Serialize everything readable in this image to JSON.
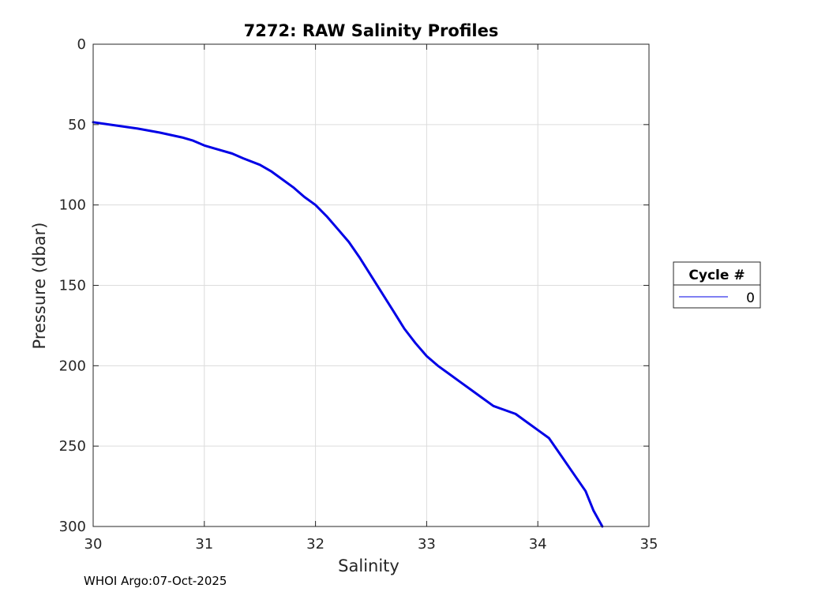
{
  "chart_data": {
    "type": "line",
    "title": "7272: RAW Salinity Profiles",
    "xlabel": "Salinity",
    "ylabel": "Pressure (dbar)",
    "xlim": [
      30,
      35
    ],
    "ylim": [
      0,
      300
    ],
    "y_reversed": true,
    "grid": true,
    "x_ticks": [
      "30",
      "31",
      "32",
      "33",
      "34",
      "35"
    ],
    "y_ticks": [
      "0",
      "50",
      "100",
      "150",
      "200",
      "250",
      "300"
    ],
    "legend": {
      "title": "Cycle #",
      "placement": "outside-right"
    },
    "series": [
      {
        "name": "0",
        "color": "#0000e6",
        "x": [
          30.0,
          30.2,
          30.4,
          30.6,
          30.8,
          30.9,
          31.0,
          31.1,
          31.25,
          31.35,
          31.5,
          31.6,
          31.7,
          31.8,
          31.9,
          32.0,
          32.1,
          32.2,
          32.3,
          32.4,
          32.5,
          32.6,
          32.7,
          32.8,
          32.9,
          33.0,
          33.1,
          33.2,
          33.3,
          33.4,
          33.5,
          33.6,
          33.8,
          33.9,
          34.0,
          34.1,
          34.2,
          34.3,
          34.43,
          34.5,
          34.58
        ],
        "y": [
          48.5,
          50.5,
          52.5,
          55.0,
          58.0,
          60.0,
          63.0,
          65.0,
          68.0,
          71.0,
          75.0,
          79.0,
          84.0,
          89.0,
          95.0,
          100.0,
          107.0,
          115.0,
          123.0,
          133.0,
          144.0,
          155.0,
          166.0,
          177.0,
          186.0,
          194.0,
          200.0,
          205.0,
          210.0,
          215.0,
          220.0,
          225.0,
          230.0,
          235.0,
          240.0,
          245.0,
          255.0,
          265.0,
          278.0,
          290.0,
          300.0
        ]
      }
    ]
  },
  "footer": "WHOI Argo:07-Oct-2025"
}
